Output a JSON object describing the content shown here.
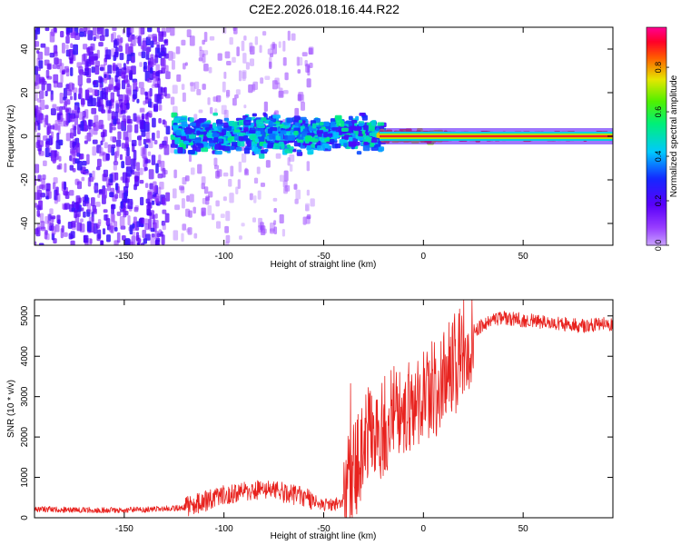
{
  "title": "C2E2.2026.018.16.44.R22",
  "colors": {
    "snr_line": "#e8221e",
    "axis": "#000000",
    "background": "#ffffff"
  },
  "chart_data": [
    {
      "type": "heatmap",
      "xlabel": "Height of straight line (km)",
      "ylabel": "Frequency (Hz)",
      "xlim": [
        -195,
        95
      ],
      "ylim": [
        -50,
        50
      ],
      "x_ticks": [
        -150,
        -100,
        -50,
        0,
        50
      ],
      "y_ticks": [
        -40,
        -20,
        0,
        20,
        40
      ],
      "grid": false,
      "colorbar": {
        "label": "Normalized spectral amplitude",
        "range": [
          0,
          0.98
        ],
        "ticks": [
          0.0,
          0.2,
          0.4,
          0.6,
          0.8
        ],
        "colormap": "rainbow (violet → blue → cyan → green → yellow → red → magenta)"
      },
      "regions": [
        {
          "x_range": [
            -195,
            -128
          ],
          "frequency_spread_hz": [
            -50,
            50
          ],
          "amplitude": [
            0.05,
            0.25
          ]
        },
        {
          "x_range": [
            -128,
            -55
          ],
          "frequency_spread_hz": [
            -50,
            50
          ],
          "amplitude": [
            0.02,
            0.1
          ]
        },
        {
          "x_range": [
            -125,
            -20
          ],
          "frequency_spread_hz": [
            -10,
            12
          ],
          "amplitude": [
            0.2,
            0.55
          ]
        },
        {
          "x_range": [
            -22,
            10
          ],
          "frequency_spread_hz": [
            -3,
            3
          ],
          "amplitude": [
            0.7,
            0.9
          ]
        },
        {
          "x_range": [
            10,
            95
          ],
          "frequency_spread_hz": [
            -1.5,
            1.5
          ],
          "amplitude": [
            0.85,
            0.9
          ]
        }
      ]
    },
    {
      "type": "line",
      "xlabel": "Height of straight line (km)",
      "ylabel": "SNR (10 * v/v)",
      "xlim": [
        -195,
        95
      ],
      "ylim": [
        0,
        5400
      ],
      "x_ticks": [
        -150,
        -100,
        -50,
        0,
        50
      ],
      "y_ticks": [
        0,
        1000,
        2000,
        3000,
        4000,
        5000
      ],
      "grid": false,
      "series": [
        {
          "x": [
            -195,
            -180,
            -160,
            -140,
            -120,
            -110,
            -100,
            -90,
            -80,
            -70,
            -60,
            -50,
            -45,
            -40,
            -35,
            -30,
            -25,
            -20,
            -15,
            -10,
            -5,
            0,
            5,
            10,
            15,
            20,
            25,
            30,
            35,
            40,
            50,
            60,
            70,
            80,
            90,
            95
          ],
          "values": [
            220,
            200,
            190,
            200,
            250,
            400,
            550,
            650,
            700,
            620,
            500,
            330,
            300,
            450,
            1100,
            1800,
            2100,
            2300,
            2600,
            2700,
            2900,
            3100,
            3200,
            3450,
            3700,
            4200,
            4600,
            4800,
            4900,
            4950,
            4900,
            4850,
            4800,
            4750,
            4800,
            4800
          ]
        }
      ]
    }
  ]
}
